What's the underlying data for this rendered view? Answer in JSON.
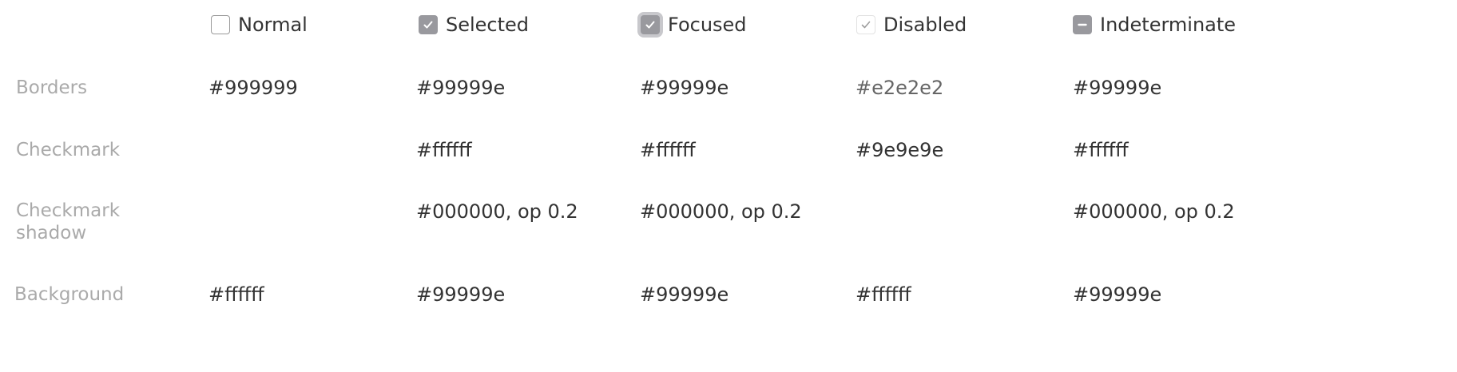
{
  "states": [
    {
      "key": "normal",
      "label": "Normal",
      "icon": "checkbox-empty-icon"
    },
    {
      "key": "selected",
      "label": "Selected",
      "icon": "checkbox-checked-icon"
    },
    {
      "key": "focused",
      "label": "Focused",
      "icon": "checkbox-checked-focused-icon"
    },
    {
      "key": "disabled",
      "label": "Disabled",
      "icon": "checkbox-checked-disabled-icon"
    },
    {
      "key": "indeterminate",
      "label": "Indeterminate",
      "icon": "checkbox-indeterminate-icon"
    }
  ],
  "rows": [
    {
      "label": "Borders",
      "values": [
        "#999999",
        "#99999e",
        "#99999e",
        "#e2e2e2",
        "#99999e"
      ]
    },
    {
      "label": "Checkmark",
      "values": [
        "",
        "#ffffff",
        "#ffffff",
        "#9e9e9e",
        "#ffffff"
      ]
    },
    {
      "label": "Checkmark\nshadow",
      "values": [
        "",
        "#000000, op 0.2",
        "#000000, op 0.2",
        "",
        "#000000, op 0.2"
      ]
    },
    {
      "label": "Background",
      "values": [
        "#ffffff",
        "#99999e",
        "#99999e",
        "#ffffff",
        "#99999e"
      ]
    }
  ],
  "colors": {
    "border_normal": "#999999",
    "fill_selected": "#99999e",
    "border_disabled": "#e2e2e2",
    "checkmark": "#ffffff",
    "checkmark_disabled": "#9e9e9e",
    "label_gray": "#aaaaaa",
    "text": "#333333"
  }
}
